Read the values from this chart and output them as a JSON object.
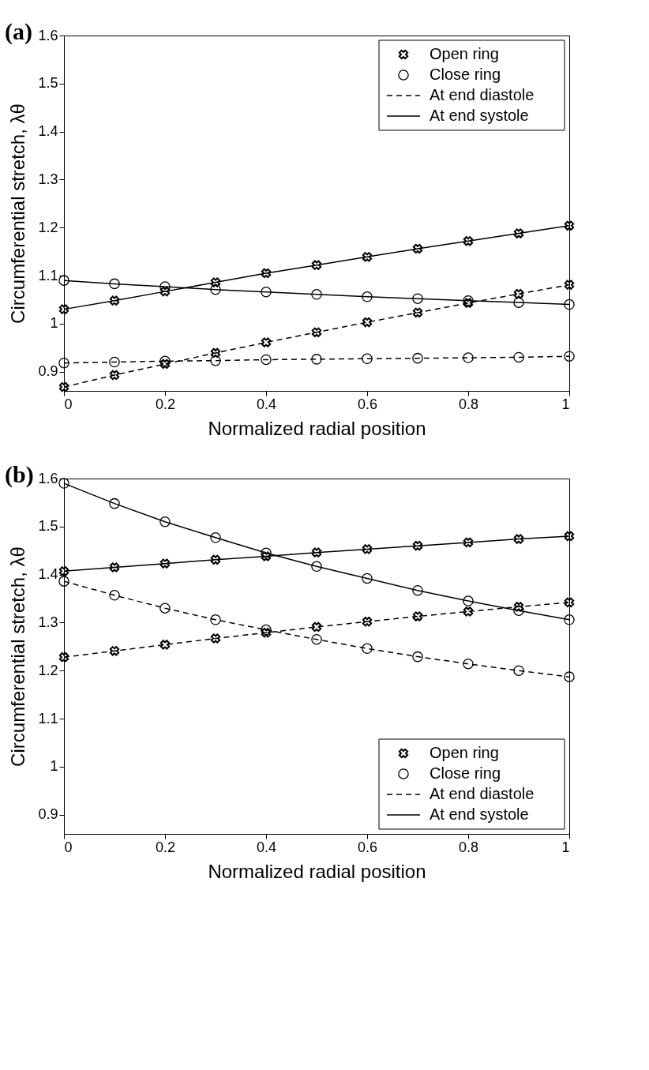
{
  "chart_data": [
    {
      "type": "line",
      "title": "(a)",
      "xlabel": "Normalized radial position",
      "ylabel": "Circumferential stretch, λθ",
      "x": [
        0,
        0.1,
        0.2,
        0.3,
        0.4,
        0.5,
        0.6,
        0.7,
        0.8,
        0.9,
        1
      ],
      "xlim": [
        0,
        1
      ],
      "xticks": [
        0,
        0.2,
        0.4,
        0.6,
        0.8,
        1
      ],
      "ylim": [
        0.86,
        1.6
      ],
      "yticks": [
        0.9,
        1,
        1.1,
        1.2,
        1.3,
        1.4,
        1.5,
        1.6
      ],
      "grid": false,
      "legend": "top right",
      "series": [
        {
          "color": "#000000",
          "marker": "cross",
          "line_style": "dashed",
          "values": [
            0.868,
            0.893,
            0.916,
            0.939,
            0.961,
            0.982,
            1.003,
            1.023,
            1.043,
            1.062,
            1.081
          ]
        },
        {
          "color": "#000000",
          "marker": "cross",
          "line_style": "solid",
          "values": [
            1.03,
            1.048,
            1.067,
            1.086,
            1.105,
            1.122,
            1.139,
            1.156,
            1.172,
            1.188,
            1.204
          ]
        },
        {
          "color": "#000000",
          "marker": "circle",
          "line_style": "dashed",
          "values": [
            0.918,
            0.92,
            0.922,
            0.923,
            0.925,
            0.926,
            0.927,
            0.928,
            0.929,
            0.93,
            0.932
          ]
        },
        {
          "color": "#000000",
          "marker": "circle",
          "line_style": "solid",
          "values": [
            1.09,
            1.083,
            1.077,
            1.071,
            1.066,
            1.061,
            1.056,
            1.052,
            1.048,
            1.044,
            1.04
          ]
        },
        {
          "name": "Open ring",
          "color": "#000000",
          "marker": "cross",
          "line_style": "none",
          "values": [
            null,
            null,
            null,
            null,
            null,
            null,
            null,
            null,
            null,
            null,
            null
          ]
        },
        {
          "name": "Close ring",
          "color": "#000000",
          "marker": "circle",
          "line_style": "none",
          "values": [
            null,
            null,
            null,
            null,
            null,
            null,
            null,
            null,
            null,
            null,
            null
          ]
        },
        {
          "name": "At end diastole",
          "color": "#000000",
          "marker": "none",
          "line_style": "dashed",
          "values": [
            null,
            null,
            null,
            null,
            null,
            null,
            null,
            null,
            null,
            null,
            null
          ]
        },
        {
          "name": "At end systole",
          "color": "#000000",
          "marker": "none",
          "line_style": "solid",
          "values": [
            null,
            null,
            null,
            null,
            null,
            null,
            null,
            null,
            null,
            null,
            null
          ]
        }
      ]
    },
    {
      "type": "line",
      "title": "(b)",
      "xlabel": "Normalized radial position",
      "ylabel": "Circumferential stretch, λθ",
      "x": [
        0,
        0.1,
        0.2,
        0.3,
        0.4,
        0.5,
        0.6,
        0.7,
        0.8,
        0.9,
        1
      ],
      "xlim": [
        0,
        1
      ],
      "xticks": [
        0,
        0.2,
        0.4,
        0.6,
        0.8,
        1
      ],
      "ylim": [
        0.86,
        1.6
      ],
      "yticks": [
        0.9,
        1,
        1.1,
        1.2,
        1.3,
        1.4,
        1.5,
        1.6
      ],
      "grid": false,
      "legend": "bottom right",
      "series": [
        {
          "color": "#000000",
          "marker": "cross",
          "line_style": "dashed",
          "values": [
            1.228,
            1.241,
            1.254,
            1.267,
            1.279,
            1.291,
            1.302,
            1.313,
            1.323,
            1.333,
            1.342
          ]
        },
        {
          "color": "#000000",
          "marker": "cross",
          "line_style": "solid",
          "values": [
            1.407,
            1.415,
            1.423,
            1.431,
            1.438,
            1.446,
            1.453,
            1.46,
            1.467,
            1.474,
            1.48
          ]
        },
        {
          "color": "#000000",
          "marker": "circle",
          "line_style": "dashed",
          "values": [
            1.386,
            1.357,
            1.33,
            1.306,
            1.285,
            1.265,
            1.246,
            1.229,
            1.214,
            1.2,
            1.187
          ]
        },
        {
          "color": "#000000",
          "marker": "circle",
          "line_style": "solid",
          "values": [
            1.59,
            1.548,
            1.51,
            1.477,
            1.445,
            1.417,
            1.392,
            1.367,
            1.345,
            1.325,
            1.306
          ]
        },
        {
          "name": "Open ring",
          "color": "#000000",
          "marker": "cross",
          "line_style": "none",
          "values": [
            null,
            null,
            null,
            null,
            null,
            null,
            null,
            null,
            null,
            null,
            null
          ]
        },
        {
          "name": "Close ring",
          "color": "#000000",
          "marker": "circle",
          "line_style": "none",
          "values": [
            null,
            null,
            null,
            null,
            null,
            null,
            null,
            null,
            null,
            null,
            null
          ]
        },
        {
          "name": "At end diastole",
          "color": "#000000",
          "marker": "none",
          "line_style": "dashed",
          "values": [
            null,
            null,
            null,
            null,
            null,
            null,
            null,
            null,
            null,
            null,
            null
          ]
        },
        {
          "name": "At end systole",
          "color": "#000000",
          "marker": "none",
          "line_style": "solid",
          "values": [
            null,
            null,
            null,
            null,
            null,
            null,
            null,
            null,
            null,
            null,
            null
          ]
        }
      ]
    }
  ]
}
